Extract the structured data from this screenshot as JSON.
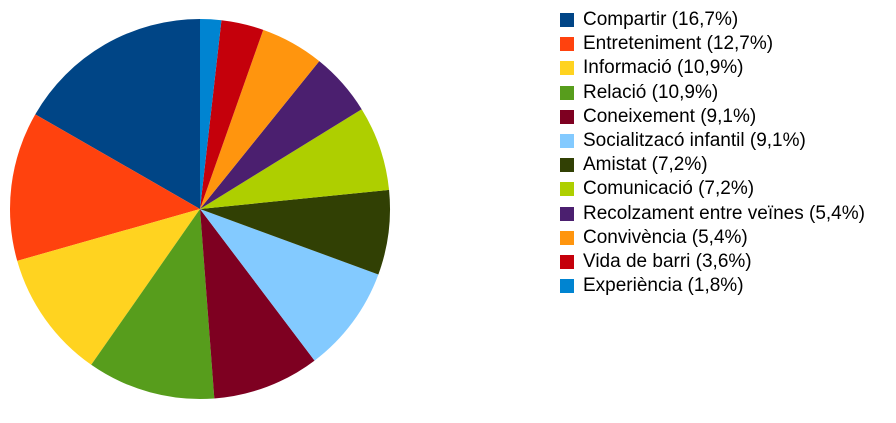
{
  "chart_data": {
    "type": "pie",
    "categories": [
      "Compartir (16,7%)",
      "Entreteniment (12,7%)",
      "Informació (10,9%)",
      "Relació (10,9%)",
      "Coneixement (9,1%)",
      "Socialitzacó infantil (9,1%)",
      "Amistat (7,2%)",
      "Comunicació (7,2%)",
      "Recolzament entre veïnes (5,4%)",
      "Convivència (5,4%)",
      "Vida de barri (3,6%)",
      "Experiència (1,8%)"
    ],
    "values": [
      16.7,
      12.7,
      10.9,
      10.9,
      9.1,
      9.1,
      7.2,
      7.2,
      5.4,
      5.4,
      3.6,
      1.8
    ],
    "colors": [
      "#004586",
      "#ff420e",
      "#ffd320",
      "#579d1c",
      "#7e0021",
      "#83caff",
      "#314004",
      "#aecf00",
      "#4b1f6f",
      "#ff950e",
      "#c5000b",
      "#0084d1"
    ],
    "legend": "right"
  }
}
